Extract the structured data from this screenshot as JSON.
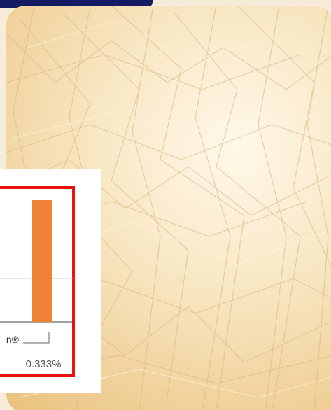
{
  "colors": {
    "banner": "#151a64",
    "background": "#f7ecd9",
    "highlight": "#ee1111",
    "bar": "#ee8335"
  },
  "chart_data": {
    "type": "bar",
    "categories": [
      "n®"
    ],
    "values": [
      0.333
    ],
    "value_labels": [
      "0.333%"
    ]
  }
}
